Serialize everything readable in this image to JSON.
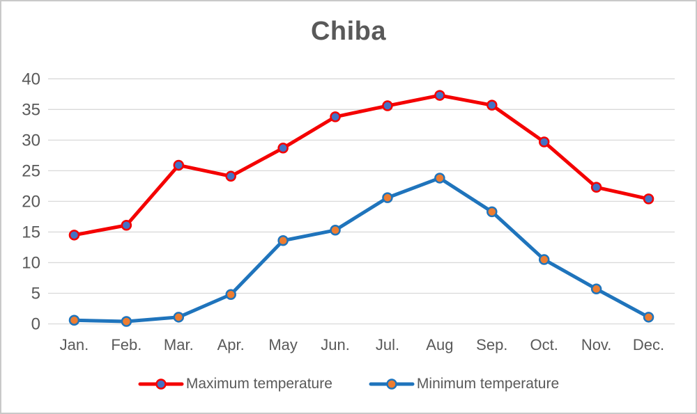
{
  "window": {
    "background": "#ffffff",
    "border_color": "#c9c9c9"
  },
  "chart_data": {
    "type": "line",
    "title": "Chiba",
    "categories": [
      "Jan.",
      "Feb.",
      "Mar.",
      "Apr.",
      "May",
      "Jun.",
      "Jul.",
      "Aug",
      "Sep.",
      "Oct.",
      "Nov.",
      "Dec."
    ],
    "series": [
      {
        "name": "Maximum temperature",
        "values": [
          14.5,
          16.1,
          25.9,
          24.1,
          28.7,
          33.8,
          35.6,
          37.3,
          35.7,
          29.7,
          22.3,
          20.4
        ],
        "line_color": "#f40000",
        "marker_fill": "#4472c4"
      },
      {
        "name": "Minimum temperature",
        "values": [
          0.6,
          0.4,
          1.1,
          4.8,
          13.6,
          15.3,
          20.6,
          23.8,
          18.3,
          10.5,
          5.7,
          1.1
        ],
        "line_color": "#1f74bc",
        "marker_fill": "#ed7d31"
      }
    ],
    "xlabel": "",
    "ylabel": "",
    "ylim": [
      0,
      40
    ],
    "ytick_step": 5,
    "yticks": [
      0,
      5,
      10,
      15,
      20,
      25,
      30,
      35,
      40
    ],
    "grid": "horizontal",
    "gridline_color": "#d9d9d9",
    "text_color": "#595959",
    "legend_position": "bottom"
  }
}
